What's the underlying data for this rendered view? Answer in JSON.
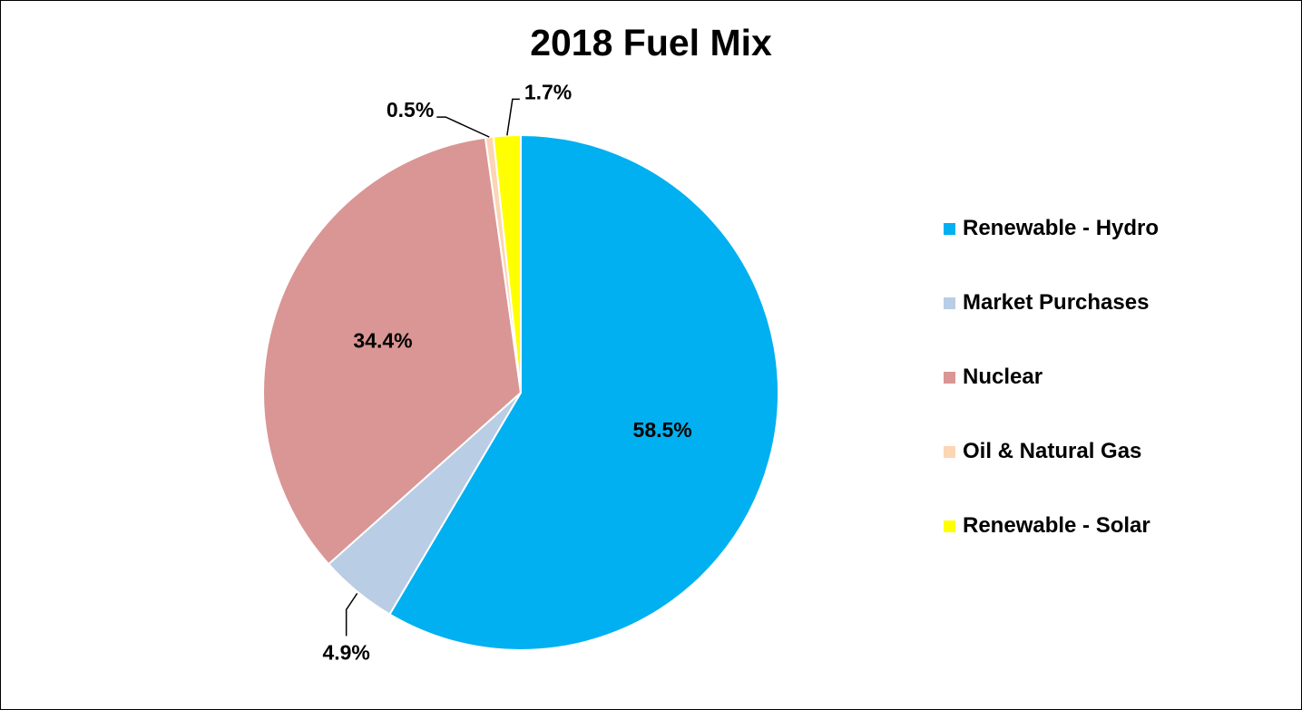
{
  "chart_data": {
    "type": "pie",
    "title": "2018 Fuel Mix",
    "legend_position": "right",
    "slices": [
      {
        "name": "Renewable - Hydro",
        "value": 58.5,
        "label": "58.5%",
        "color": "#00B0F0"
      },
      {
        "name": "Market Purchases",
        "value": 4.9,
        "label": "4.9%",
        "color": "#B9CDE5"
      },
      {
        "name": "Nuclear",
        "value": 34.4,
        "label": "34.4%",
        "color": "#D99694"
      },
      {
        "name": "Oil & Natural Gas",
        "value": 0.5,
        "label": "0.5%",
        "color": "#FCD5B5"
      },
      {
        "name": "Renewable - Solar",
        "value": 1.7,
        "label": "1.7%",
        "color": "#FFFF00"
      }
    ]
  }
}
